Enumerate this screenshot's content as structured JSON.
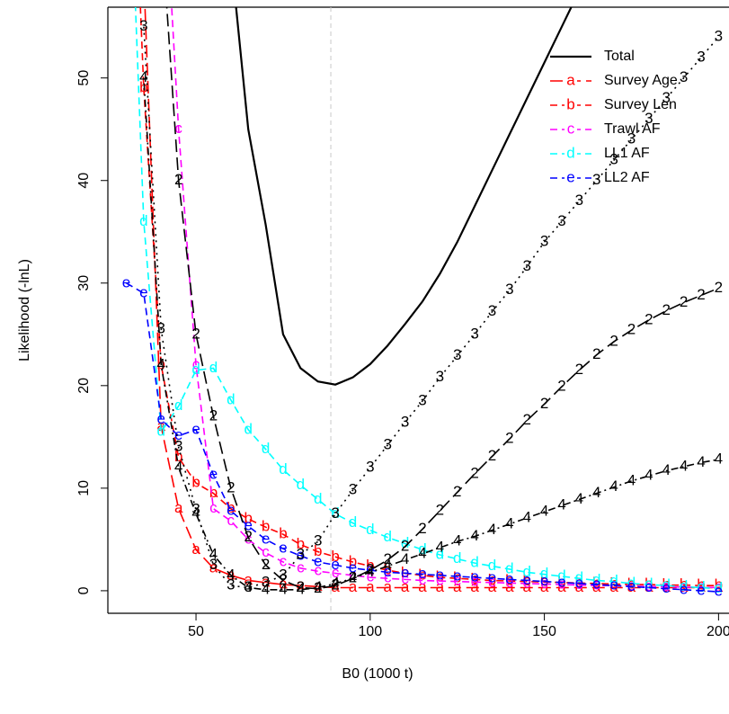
{
  "chart_data": {
    "type": "line",
    "x_label": "B0 (1000 t)",
    "y_label": "Likelihood (-lnL)",
    "xlim": [
      24.7,
      203
    ],
    "ylim": [
      -2.2,
      56.9
    ],
    "xticks": [
      50,
      100,
      150,
      200
    ],
    "yticks": [
      0,
      10,
      20,
      30,
      40,
      50
    ],
    "vline": 88.7,
    "legend": "top-right",
    "x": [
      30,
      35,
      40,
      45,
      50,
      55,
      60,
      65,
      70,
      75,
      80,
      85,
      90,
      95,
      100,
      105,
      110,
      115,
      120,
      125,
      130,
      135,
      140,
      145,
      150,
      155,
      160,
      165,
      170,
      175,
      180,
      185,
      190,
      195,
      200
    ],
    "series": [
      {
        "name": "Total",
        "color": "#000000",
        "dash": "solid",
        "values": [
          null,
          null,
          null,
          null,
          null,
          null,
          62,
          45,
          35.7,
          25,
          21.7,
          20.4,
          20.1,
          20.8,
          22.1,
          23.9,
          26,
          28.2,
          30.9,
          34,
          37.5,
          41,
          44.5,
          48,
          51.5,
          55,
          58.5,
          62,
          null,
          null,
          null,
          null,
          null,
          null,
          null
        ]
      },
      {
        "name": "Survey Age",
        "marker": "a",
        "color": "#ff0000",
        "dash": "longdash",
        "values": [
          90,
          60,
          16,
          8,
          4,
          2.2,
          1.5,
          1.0,
          0.8,
          0.6,
          0.5,
          0.4,
          0.3,
          0.3,
          0.3,
          0.3,
          0.3,
          0.3,
          0.3,
          0.3,
          0.3,
          0.3,
          0.3,
          0.3,
          0.3,
          0.3,
          0.3,
          0.3,
          0.3,
          0.3,
          0.3,
          0.3,
          0.3,
          0.3,
          0.3
        ]
      },
      {
        "name": "Survey Len",
        "marker": "b",
        "color": "#ff0000",
        "dash": "dashed",
        "values": [
          90,
          49,
          22,
          13,
          10.5,
          9.5,
          8,
          7,
          6.2,
          5.5,
          4.5,
          3.8,
          3.3,
          2.8,
          2.4,
          2.0,
          1.7,
          1.5,
          1.3,
          1.2,
          1.1,
          1.0,
          0.95,
          0.9,
          0.85,
          0.8,
          0.75,
          0.7,
          0.65,
          0.6,
          0.6,
          0.55,
          0.55,
          0.5,
          0.5
        ]
      },
      {
        "name": "Trawl AF",
        "marker": "c",
        "color": "#ff00ff",
        "dash": "dashed",
        "values": [
          null,
          null,
          75,
          45,
          22,
          8,
          6.8,
          5,
          3.7,
          2.8,
          2.2,
          1.9,
          1.7,
          1.5,
          1.3,
          1.2,
          1.1,
          1.0,
          0.95,
          0.9,
          0.85,
          0.8,
          0.75,
          0.7,
          0.65,
          0.6,
          0.55,
          0.5,
          0.5,
          0.45,
          0.4,
          0.4,
          0.35,
          0.35,
          0.3
        ]
      },
      {
        "name": "LL1 AF",
        "marker": "d",
        "color": "#00ffff",
        "dash": "dashed",
        "values": [
          80,
          36,
          15.5,
          18,
          21.5,
          21.7,
          18.6,
          15.7,
          13.8,
          11.8,
          10.3,
          8.9,
          7.5,
          6.6,
          5.9,
          5.2,
          4.6,
          4.0,
          3.5,
          3.1,
          2.7,
          2.4,
          2.1,
          1.8,
          1.6,
          1.4,
          1.2,
          1.0,
          0.9,
          0.7,
          0.6,
          0.5,
          0.4,
          0.3,
          0.2
        ]
      },
      {
        "name": "LL2 AF",
        "marker": "e",
        "color": "#0000ff",
        "dash": "dashed",
        "values": [
          30,
          29,
          16.7,
          15.1,
          15.7,
          11.3,
          7.8,
          6.3,
          5.0,
          4.1,
          3.4,
          2.8,
          2.5,
          2.2,
          2.0,
          1.8,
          1.7,
          1.6,
          1.5,
          1.4,
          1.3,
          1.2,
          1.1,
          1.0,
          0.9,
          0.8,
          0.7,
          0.6,
          0.5,
          0.4,
          0.3,
          0.2,
          0.1,
          0.0,
          -0.1
        ]
      },
      {
        "marker": "2",
        "color": "#000000",
        "dash": "longdash",
        "values": [
          null,
          null,
          65,
          40,
          25,
          17,
          10,
          5.2,
          2.5,
          1.0,
          0.3,
          0.2,
          0.5,
          1.2,
          2.0,
          3.0,
          4.3,
          6.0,
          7.8,
          9.6,
          11.4,
          13.1,
          14.8,
          16.6,
          18.2,
          19.9,
          21.5,
          23,
          24.3,
          25.4,
          26.4,
          27.3,
          28.1,
          28.8,
          29.5
        ]
      },
      {
        "marker": "3",
        "color": "#000000",
        "dash": "dotted",
        "values": [
          null,
          55,
          25.5,
          14,
          7.9,
          2.5,
          0.5,
          0.3,
          0.8,
          1.5,
          3.5,
          4.8,
          7.5,
          9.8,
          12,
          14.2,
          16.4,
          18.5,
          20.8,
          22.9,
          25,
          27.2,
          29.3,
          31.6,
          34,
          36,
          38,
          40,
          42,
          44,
          46,
          48,
          50,
          52,
          54
        ]
      },
      {
        "marker": "4",
        "color": "#000000",
        "dash": "dotdash",
        "values": [
          null,
          50,
          22,
          12,
          7.5,
          3.5,
          1.5,
          0.3,
          0.1,
          0.1,
          0.1,
          0.3,
          0.7,
          1.2,
          1.8,
          2.4,
          3.0,
          3.6,
          4.2,
          4.8,
          5.3,
          5.9,
          6.5,
          7.1,
          7.7,
          8.3,
          8.9,
          9.5,
          10.1,
          10.7,
          11.2,
          11.7,
          12.1,
          12.5,
          12.8
        ]
      }
    ]
  }
}
